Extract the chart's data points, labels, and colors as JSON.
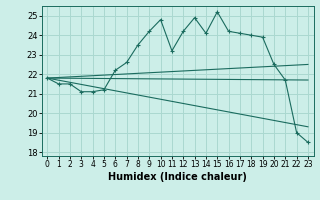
{
  "title": "",
  "xlabel": "Humidex (Indice chaleur)",
  "ylabel": "",
  "xlim": [
    -0.5,
    23.5
  ],
  "ylim": [
    17.8,
    25.5
  ],
  "yticks": [
    18,
    19,
    20,
    21,
    22,
    23,
    24,
    25
  ],
  "xticks": [
    0,
    1,
    2,
    3,
    4,
    5,
    6,
    7,
    8,
    9,
    10,
    11,
    12,
    13,
    14,
    15,
    16,
    17,
    18,
    19,
    20,
    21,
    22,
    23
  ],
  "bg_color": "#cceee8",
  "line_color": "#1a6b5e",
  "grid_color": "#aad8d0",
  "line1_x": [
    0,
    1,
    2,
    3,
    4,
    5,
    6,
    7,
    8,
    9,
    10,
    11,
    12,
    13,
    14,
    15,
    16,
    17,
    18,
    19,
    20,
    21,
    22,
    23
  ],
  "line1_y": [
    21.8,
    21.5,
    21.5,
    21.1,
    21.1,
    21.2,
    22.2,
    22.6,
    23.5,
    24.2,
    24.8,
    23.2,
    24.2,
    24.9,
    24.1,
    25.2,
    24.2,
    24.1,
    24.0,
    23.9,
    22.5,
    21.7,
    19.0,
    18.5
  ],
  "line2_x": [
    0,
    23
  ],
  "line2_y": [
    21.8,
    22.5
  ],
  "line3_x": [
    0,
    23
  ],
  "line3_y": [
    21.8,
    21.7
  ],
  "line4_x": [
    0,
    23
  ],
  "line4_y": [
    21.8,
    19.3
  ]
}
